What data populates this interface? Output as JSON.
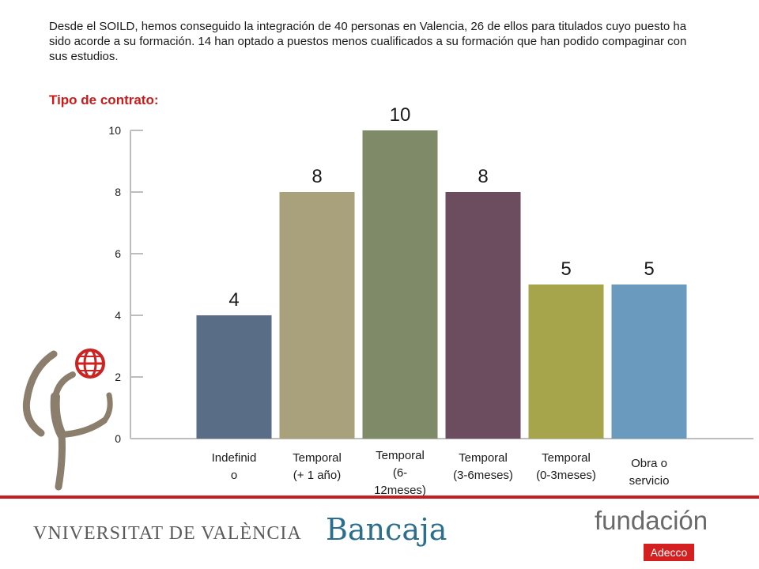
{
  "intro": "Desde el SOILD, hemos conseguido la integración de 40 personas en Valencia, 26 de ellos para titulados cuyo puesto ha sido acorde a su formación. 14 han optado a puestos menos cualificados a su formación que han podido compaginar con sus estudios.",
  "section_title": "Tipo de contrato:",
  "chart_data": {
    "type": "bar",
    "categories": [
      "Indefinido",
      "Temporal (+ 1 año)",
      "Temporal (6-12meses)",
      "Temporal (3-6meses)",
      "Temporal (0-3meses)",
      "Obra o servicio"
    ],
    "category_lines": [
      [
        "Indefinid",
        "o"
      ],
      [
        "Temporal",
        "(+ 1 año)"
      ],
      [
        "Temporal",
        "(6-",
        "12meses)"
      ],
      [
        "Temporal",
        "(3-6meses)"
      ],
      [
        "Temporal",
        "(0-3meses)"
      ],
      [
        "Obra o",
        "servicio"
      ]
    ],
    "values": [
      4,
      8,
      10,
      8,
      5,
      5
    ],
    "colors": [
      "#5a6d87",
      "#a9a17b",
      "#7f8a68",
      "#6c4d60",
      "#a7a54b",
      "#6a9abd"
    ],
    "yticks": [
      0,
      2,
      4,
      6,
      8,
      10
    ],
    "ylim": [
      0,
      10
    ],
    "grid": false
  },
  "footer": {
    "university": "VNIVERSITAT DE VALÈNCIA",
    "bank": "Bancaja",
    "foundation": "fundación",
    "foundation_sub": "Adecco"
  }
}
